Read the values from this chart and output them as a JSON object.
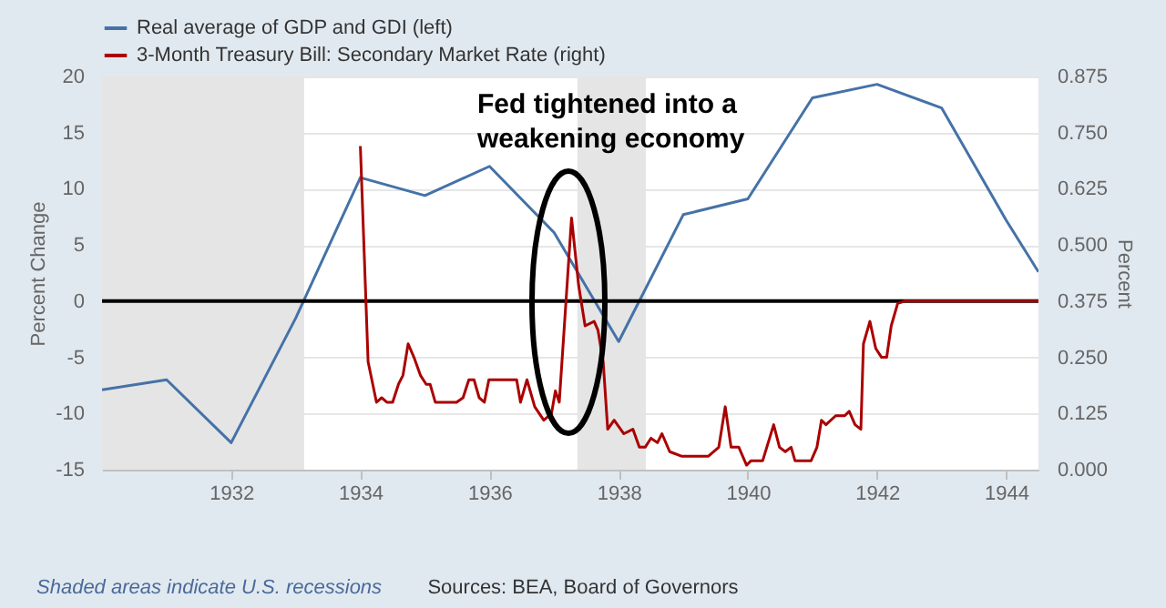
{
  "chart_data": {
    "type": "line",
    "xlabel": null,
    "ylabel": "Percent Change",
    "y2label": "Percent",
    "xlim": [
      1930,
      1944.5
    ],
    "xticks": [
      1932,
      1934,
      1936,
      1938,
      1940,
      1942,
      1944
    ],
    "ylim": [
      -15,
      20
    ],
    "yticks": [
      -15,
      -10,
      -5,
      0,
      5,
      10,
      15,
      20
    ],
    "y2lim": [
      0,
      0.875
    ],
    "y2ticks": [
      {
        "value": 0,
        "label": "0.000"
      },
      {
        "value": 0.125,
        "label": "0.125"
      },
      {
        "value": 0.25,
        "label": "0.250"
      },
      {
        "value": 0.375,
        "label": "0.375"
      },
      {
        "value": 0.5,
        "label": "0.500"
      },
      {
        "value": 0.625,
        "label": "0.625"
      },
      {
        "value": 0.75,
        "label": "0.750"
      },
      {
        "value": 0.875,
        "label": "0.875"
      }
    ],
    "grid": "y",
    "legend": "top left",
    "series": [
      {
        "name": "Real average of GDP and GDI (left)",
        "color": "#4572a7",
        "x": [
          1930,
          1931,
          1932,
          1933,
          1934,
          1935,
          1936,
          1937,
          1938,
          1939,
          1940,
          1941,
          1942,
          1943,
          1944,
          1944.5
        ],
        "values": [
          -7.9,
          -7,
          -12.6,
          -1.5,
          11,
          9.4,
          12,
          6.1,
          -3.6,
          7.7,
          9.1,
          18.1,
          19.3,
          17.2,
          7.2,
          2.6
        ]
      },
      {
        "name": "3-Month Treasury Bill: Secondary Market Rate (right)",
        "color": "#aa0000",
        "axis": "y2",
        "x": [
          1934.0,
          1934.12,
          1934.25,
          1934.33,
          1934.41,
          1934.5,
          1934.59,
          1934.66,
          1934.74,
          1934.83,
          1934.93,
          1935.02,
          1935.08,
          1935.16,
          1935.49,
          1935.59,
          1935.68,
          1935.76,
          1935.84,
          1935.92,
          1935.99,
          1936.42,
          1936.48,
          1936.58,
          1936.7,
          1936.84,
          1936.96,
          1937.02,
          1937.08,
          1937.27,
          1937.38,
          1937.48,
          1937.62,
          1937.68,
          1937.76,
          1937.83,
          1937.93,
          1938.08,
          1938.22,
          1938.32,
          1938.41,
          1938.5,
          1938.6,
          1938.67,
          1938.79,
          1938.97,
          1939.39,
          1939.55,
          1939.65,
          1939.74,
          1939.86,
          1939.98,
          1940.05,
          1940.23,
          1940.4,
          1940.49,
          1940.58,
          1940.67,
          1940.73,
          1940.98,
          1941.07,
          1941.14,
          1941.21,
          1941.36,
          1941.5,
          1941.57,
          1941.66,
          1941.75,
          1941.79,
          1941.89,
          1941.98,
          1942.07,
          1942.15,
          1942.22,
          1942.32,
          1942.43,
          1944.5
        ],
        "values": [
          0.72,
          0.24,
          0.15,
          0.16,
          0.15,
          0.15,
          0.19,
          0.21,
          0.28,
          0.25,
          0.21,
          0.19,
          0.19,
          0.15,
          0.15,
          0.16,
          0.2,
          0.2,
          0.16,
          0.15,
          0.2,
          0.2,
          0.15,
          0.2,
          0.14,
          0.11,
          0.125,
          0.175,
          0.15,
          0.56,
          0.41,
          0.32,
          0.33,
          0.31,
          0.24,
          0.09,
          0.11,
          0.08,
          0.09,
          0.05,
          0.05,
          0.07,
          0.06,
          0.08,
          0.04,
          0.03,
          0.03,
          0.05,
          0.14,
          0.05,
          0.05,
          0.01,
          0.02,
          0.02,
          0.1,
          0.05,
          0.04,
          0.05,
          0.02,
          0.02,
          0.05,
          0.11,
          0.1,
          0.12,
          0.12,
          0.13,
          0.1,
          0.09,
          0.28,
          0.33,
          0.27,
          0.25,
          0.25,
          0.32,
          0.37,
          0.375,
          0.375
        ]
      }
    ],
    "ref_lines": [
      {
        "axis": "y",
        "value": 0,
        "color": "#000000"
      }
    ],
    "bands": [
      {
        "axis": "x",
        "from": 1930,
        "to": 1933.13,
        "color": "#e5e5e5"
      },
      {
        "axis": "x",
        "from": 1937.36,
        "to": 1938.42,
        "color": "#e5e5e5"
      }
    ],
    "annotations": [
      "Fed tightened into a weakening economy",
      "Shaded areas indicate U.S. recessions",
      "Sources: BEA, Board of Governors"
    ]
  }
}
